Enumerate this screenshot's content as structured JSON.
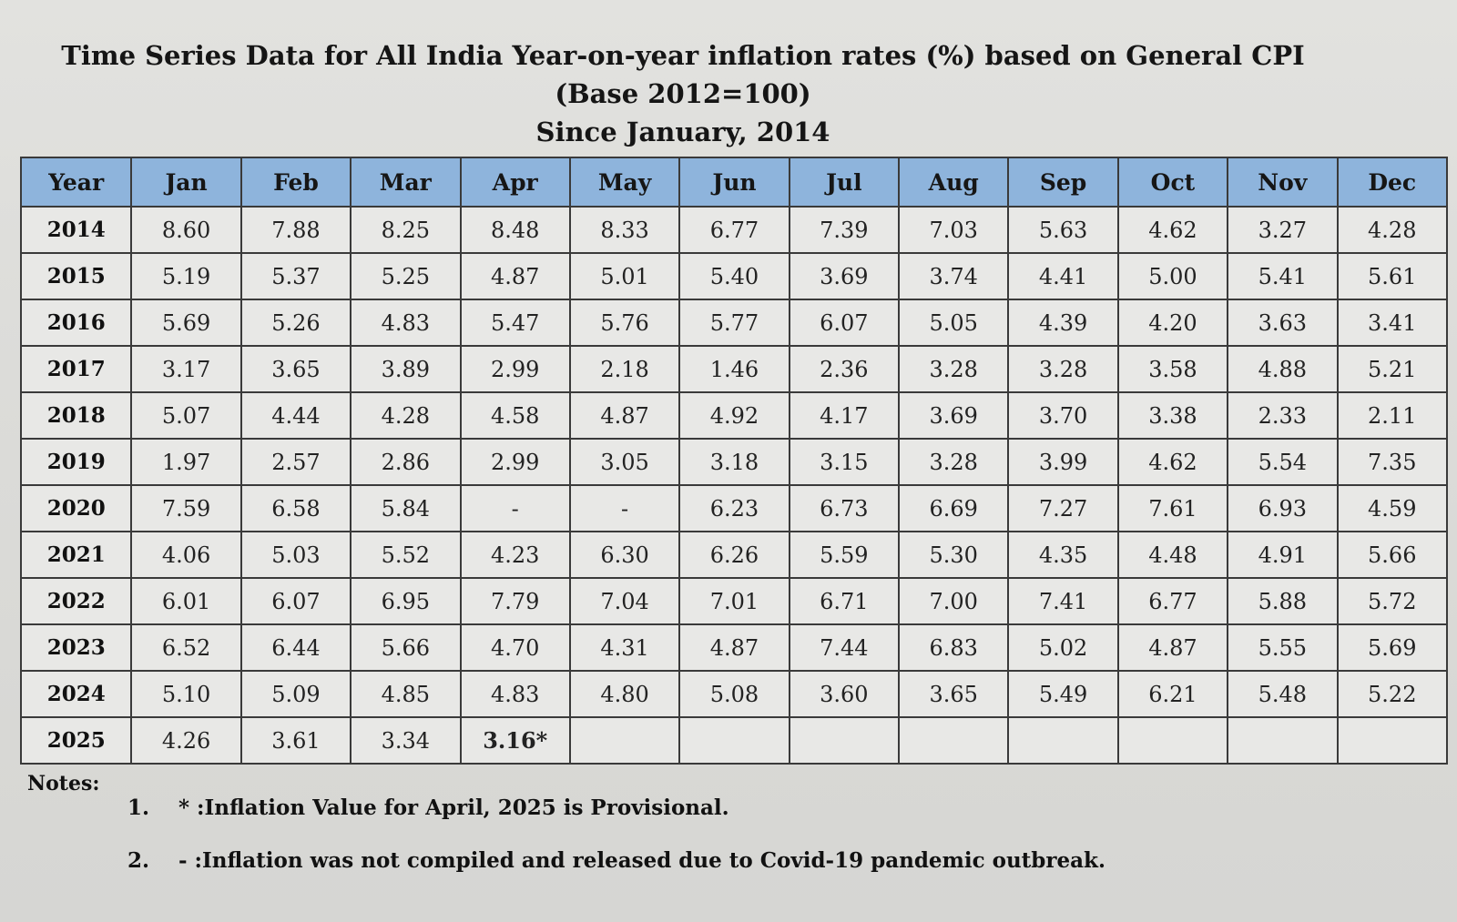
{
  "title": {
    "line1": "Time Series Data for All India Year-on-year inflation rates (%) based on General CPI (Base 2012=100)",
    "line2": "Since January, 2014"
  },
  "table": {
    "headers": [
      "Year",
      "Jan",
      "Feb",
      "Mar",
      "Apr",
      "May",
      "Jun",
      "Jul",
      "Aug",
      "Sep",
      "Oct",
      "Nov",
      "Dec"
    ],
    "rows": [
      [
        "2014",
        "8.60",
        "7.88",
        "8.25",
        "8.48",
        "8.33",
        "6.77",
        "7.39",
        "7.03",
        "5.63",
        "4.62",
        "3.27",
        "4.28"
      ],
      [
        "2015",
        "5.19",
        "5.37",
        "5.25",
        "4.87",
        "5.01",
        "5.40",
        "3.69",
        "3.74",
        "4.41",
        "5.00",
        "5.41",
        "5.61"
      ],
      [
        "2016",
        "5.69",
        "5.26",
        "4.83",
        "5.47",
        "5.76",
        "5.77",
        "6.07",
        "5.05",
        "4.39",
        "4.20",
        "3.63",
        "3.41"
      ],
      [
        "2017",
        "3.17",
        "3.65",
        "3.89",
        "2.99",
        "2.18",
        "1.46",
        "2.36",
        "3.28",
        "3.28",
        "3.58",
        "4.88",
        "5.21"
      ],
      [
        "2018",
        "5.07",
        "4.44",
        "4.28",
        "4.58",
        "4.87",
        "4.92",
        "4.17",
        "3.69",
        "3.70",
        "3.38",
        "2.33",
        "2.11"
      ],
      [
        "2019",
        "1.97",
        "2.57",
        "2.86",
        "2.99",
        "3.05",
        "3.18",
        "3.15",
        "3.28",
        "3.99",
        "4.62",
        "5.54",
        "7.35"
      ],
      [
        "2020",
        "7.59",
        "6.58",
        "5.84",
        "-",
        "-",
        "6.23",
        "6.73",
        "6.69",
        "7.27",
        "7.61",
        "6.93",
        "4.59"
      ],
      [
        "2021",
        "4.06",
        "5.03",
        "5.52",
        "4.23",
        "6.30",
        "6.26",
        "5.59",
        "5.30",
        "4.35",
        "4.48",
        "4.91",
        "5.66"
      ],
      [
        "2022",
        "6.01",
        "6.07",
        "6.95",
        "7.79",
        "7.04",
        "7.01",
        "6.71",
        "7.00",
        "7.41",
        "6.77",
        "5.88",
        "5.72"
      ],
      [
        "2023",
        "6.52",
        "6.44",
        "5.66",
        "4.70",
        "4.31",
        "4.87",
        "7.44",
        "6.83",
        "5.02",
        "4.87",
        "5.55",
        "5.69"
      ],
      [
        "2024",
        "5.10",
        "5.09",
        "4.85",
        "4.83",
        "4.80",
        "5.08",
        "3.60",
        "3.65",
        "5.49",
        "6.21",
        "5.48",
        "5.22"
      ],
      [
        "2025",
        "4.26",
        "3.61",
        "3.34",
        "3.16*",
        "",
        "",
        "",
        "",
        "",
        "",
        "",
        ""
      ]
    ]
  },
  "notes": {
    "label": "Notes:",
    "items": [
      {
        "num": "1.",
        "text": "* :Inflation Value for April, 2025 is Provisional."
      },
      {
        "num": "2.",
        "text": "- :Inflation was not compiled and released due to Covid-19 pandemic outbreak."
      }
    ]
  }
}
